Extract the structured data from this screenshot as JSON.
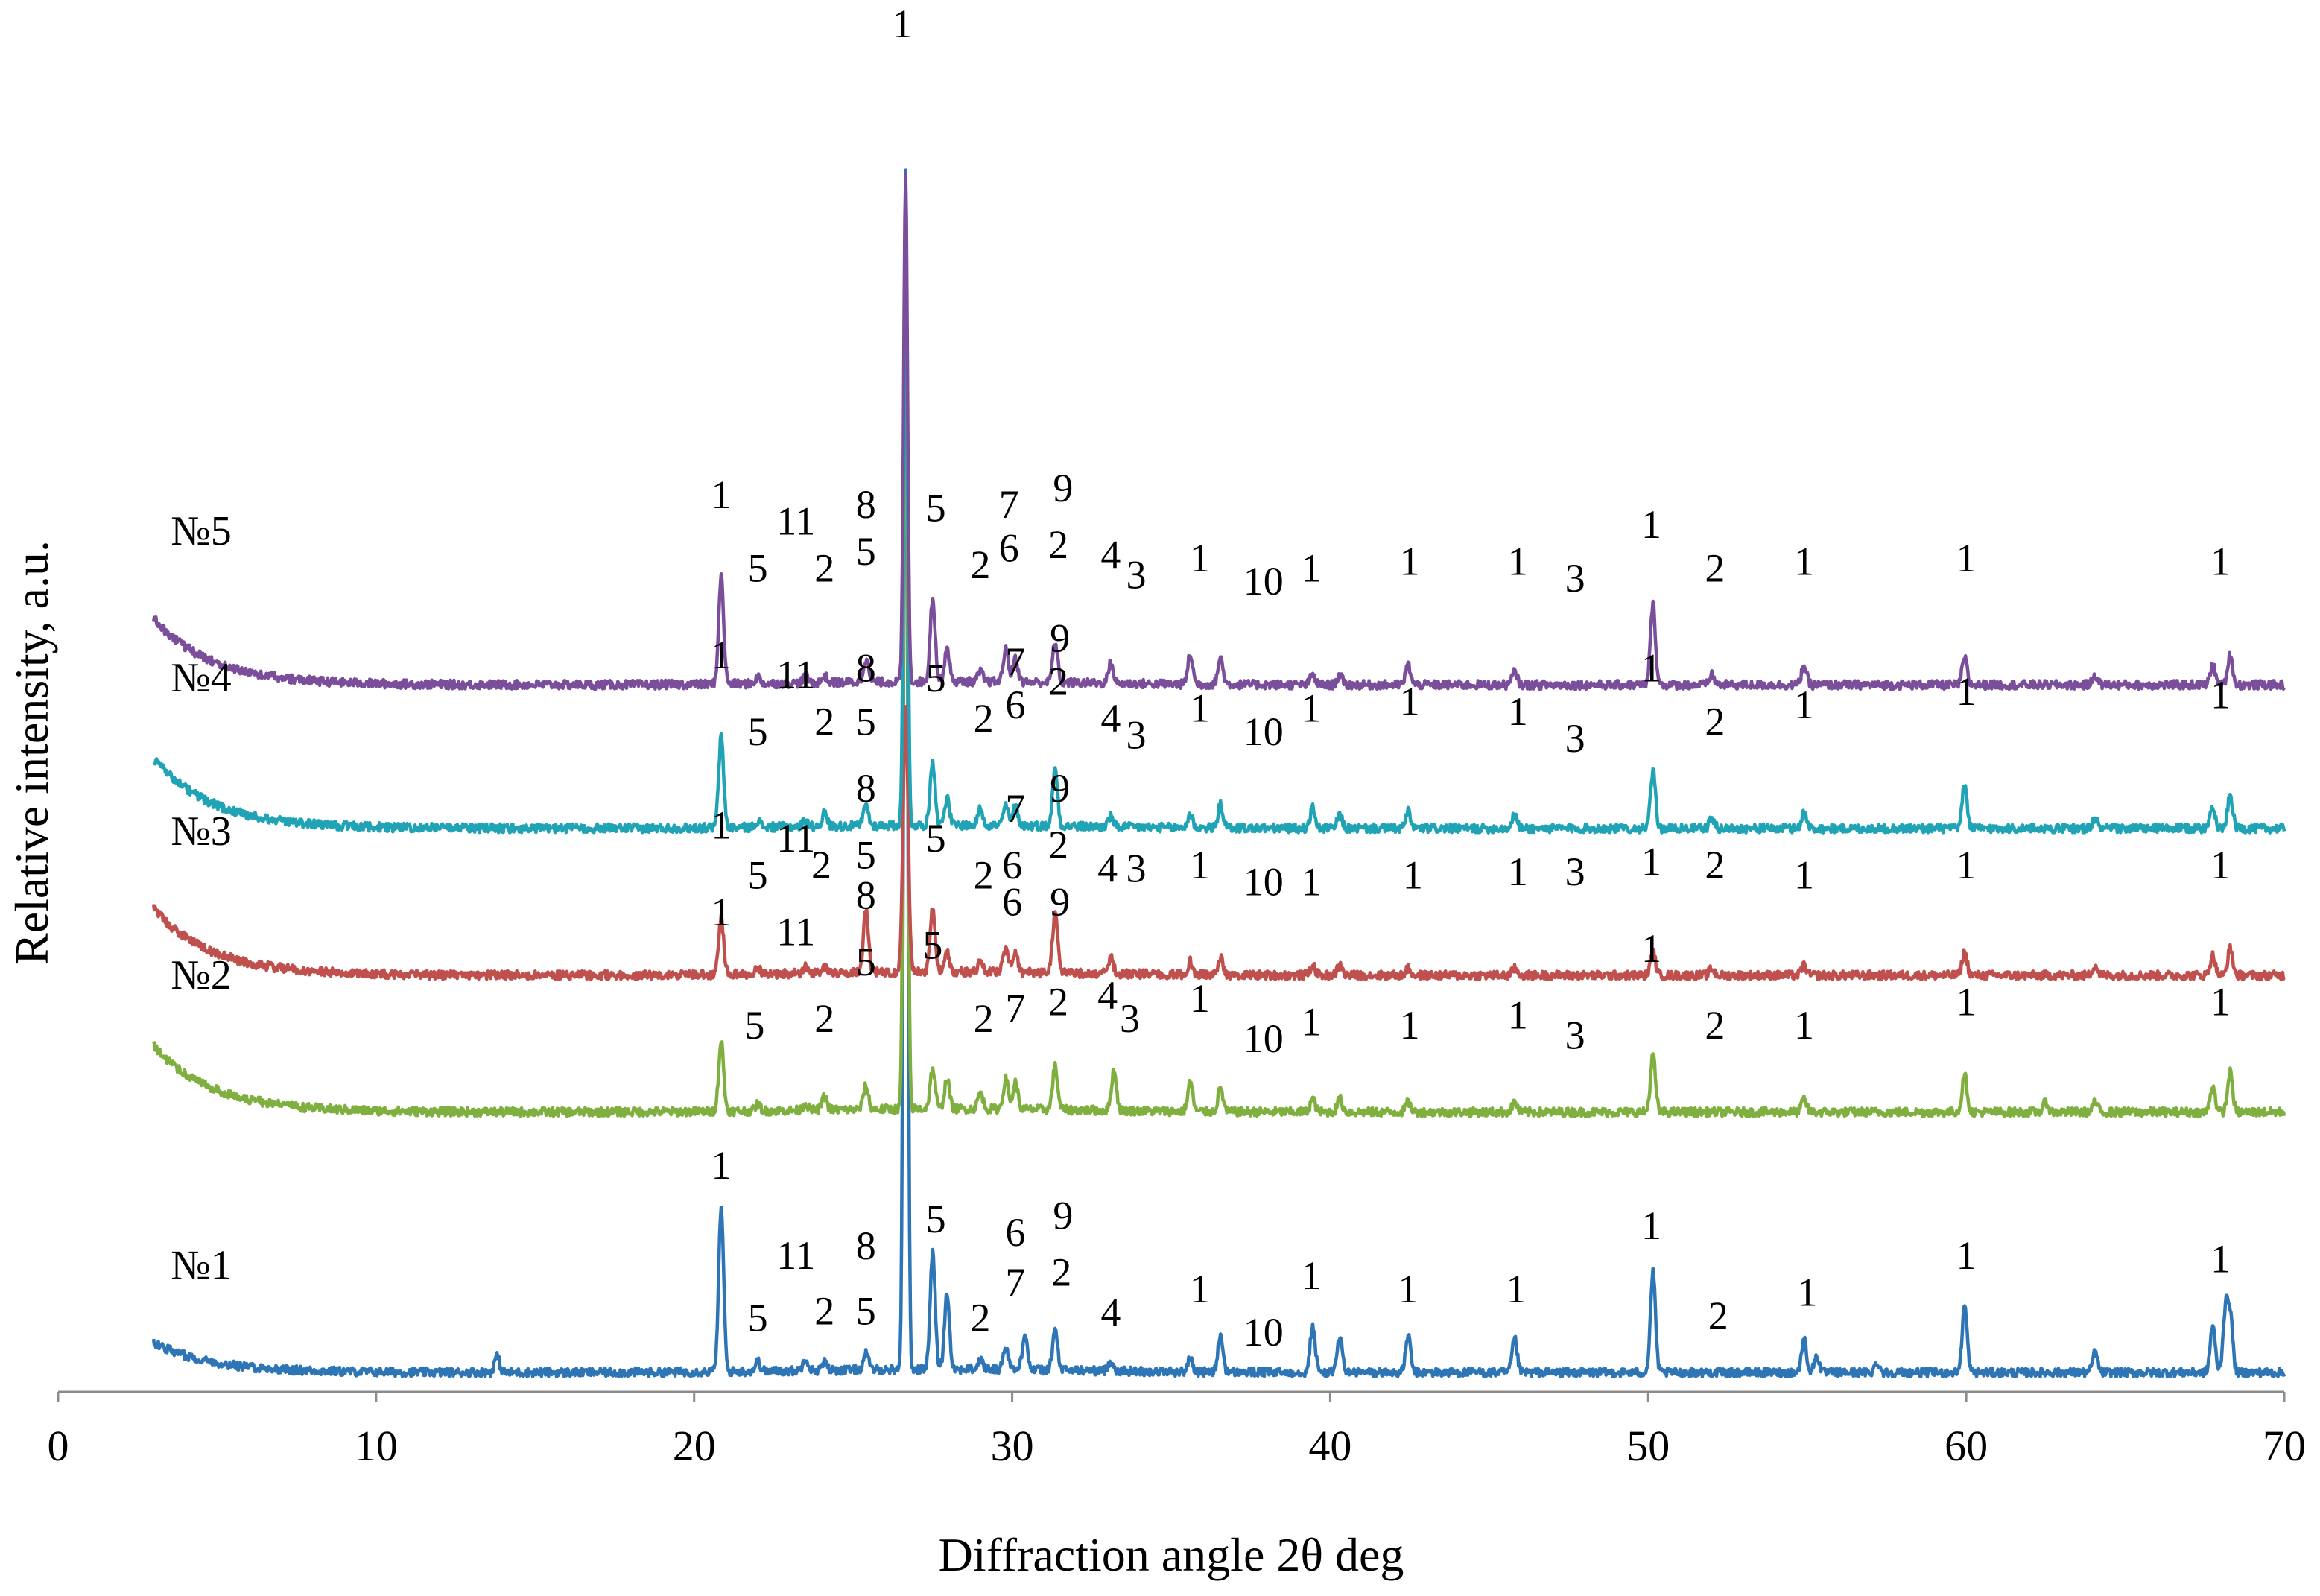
{
  "chart_data": {
    "type": "line",
    "title": "",
    "xlabel": "Diffraction angle 2θ deg",
    "ylabel": "Relative intensity, a.u.",
    "xlim": [
      0,
      70
    ],
    "x_ticks": [
      0,
      10,
      20,
      30,
      40,
      50,
      60,
      70
    ],
    "x_tick_labels": [
      "0",
      "10",
      "20",
      "30",
      "40",
      "50",
      "60",
      "70"
    ],
    "y_axis_visible": false,
    "grid": false,
    "x_range_measured": [
      3,
      70
    ],
    "baseline_shape": "background decays from ~ +0.45 at 3° to 0 by ~12°; flat thereafter",
    "series": [
      {
        "name": "№1",
        "color": "#2E75B6",
        "baseline": 0.2,
        "tail": 0.45,
        "peaks": [
          [
            13.8,
            0.25
          ],
          [
            20.85,
            2.45
          ],
          [
            22.0,
            0.15
          ],
          [
            23.5,
            0.2
          ],
          [
            24.1,
            0.12
          ],
          [
            25.4,
            0.25
          ],
          [
            26.65,
            17.9
          ],
          [
            27.5,
            1.75
          ],
          [
            27.95,
            1.15
          ],
          [
            29.0,
            0.15
          ],
          [
            29.8,
            0.35
          ],
          [
            30.4,
            0.55
          ],
          [
            31.35,
            0.6
          ],
          [
            33.1,
            0.15
          ],
          [
            35.6,
            0.2
          ],
          [
            36.55,
            0.55
          ],
          [
            39.45,
            0.7
          ],
          [
            40.3,
            0.55
          ],
          [
            42.45,
            0.55
          ],
          [
            45.8,
            0.5
          ],
          [
            50.15,
            1.5
          ],
          [
            54.9,
            0.5
          ],
          [
            55.3,
            0.25
          ],
          [
            57.2,
            0.15
          ],
          [
            59.95,
            1.0
          ],
          [
            64.05,
            0.3
          ],
          [
            67.75,
            0.7
          ],
          [
            68.15,
            0.9
          ],
          [
            68.3,
            0.85
          ]
        ]
      },
      {
        "name": "№2",
        "color": "#7FAF3F",
        "baseline": 4.1,
        "tail": 1.0,
        "peaks": [
          [
            20.85,
            1.05
          ],
          [
            22.0,
            0.1
          ],
          [
            23.5,
            0.1
          ],
          [
            24.1,
            0.2
          ],
          [
            25.4,
            0.35
          ],
          [
            26.65,
            13.0
          ],
          [
            27.5,
            0.6
          ],
          [
            27.95,
            0.45
          ],
          [
            29.0,
            0.25
          ],
          [
            29.8,
            0.45
          ],
          [
            30.1,
            0.4
          ],
          [
            31.35,
            0.65
          ],
          [
            33.2,
            0.6
          ],
          [
            35.6,
            0.45
          ],
          [
            36.55,
            0.35
          ],
          [
            39.45,
            0.2
          ],
          [
            40.3,
            0.2
          ],
          [
            42.45,
            0.15
          ],
          [
            45.8,
            0.15
          ],
          [
            50.15,
            0.85
          ],
          [
            54.9,
            0.2
          ],
          [
            59.95,
            0.55
          ],
          [
            62.5,
            0.15
          ],
          [
            64.05,
            0.15
          ],
          [
            67.75,
            0.4
          ],
          [
            68.3,
            0.6
          ]
        ]
      },
      {
        "name": "№3",
        "color": "#C0504D",
        "baseline": 6.15,
        "tail": 1.0,
        "peaks": [
          [
            20.85,
            0.85
          ],
          [
            22.0,
            0.1
          ],
          [
            23.5,
            0.1
          ],
          [
            24.1,
            0.1
          ],
          [
            25.4,
            0.95
          ],
          [
            26.65,
            4.0
          ],
          [
            27.5,
            0.95
          ],
          [
            27.95,
            0.3
          ],
          [
            29.0,
            0.15
          ],
          [
            29.8,
            0.35
          ],
          [
            30.1,
            0.3
          ],
          [
            31.35,
            0.9
          ],
          [
            33.1,
            0.25
          ],
          [
            35.6,
            0.2
          ],
          [
            36.55,
            0.25
          ],
          [
            39.45,
            0.15
          ],
          [
            40.3,
            0.15
          ],
          [
            42.45,
            0.1
          ],
          [
            45.8,
            0.1
          ],
          [
            50.15,
            0.35
          ],
          [
            52.0,
            0.1
          ],
          [
            54.9,
            0.15
          ],
          [
            59.95,
            0.35
          ],
          [
            64.05,
            0.15
          ],
          [
            67.75,
            0.3
          ],
          [
            68.3,
            0.4
          ]
        ]
      },
      {
        "name": "№4",
        "color": "#1FA3B5",
        "baseline": 8.35,
        "tail": 1.05,
        "peaks": [
          [
            20.85,
            1.35
          ],
          [
            22.0,
            0.1
          ],
          [
            23.5,
            0.1
          ],
          [
            24.1,
            0.2
          ],
          [
            25.4,
            0.3
          ],
          [
            26.65,
            8.5
          ],
          [
            27.5,
            0.95
          ],
          [
            27.95,
            0.4
          ],
          [
            29.0,
            0.25
          ],
          [
            29.8,
            0.3
          ],
          [
            30.1,
            0.3
          ],
          [
            31.35,
            0.85
          ],
          [
            33.1,
            0.15
          ],
          [
            35.6,
            0.2
          ],
          [
            36.55,
            0.35
          ],
          [
            39.45,
            0.3
          ],
          [
            40.3,
            0.2
          ],
          [
            42.45,
            0.25
          ],
          [
            45.8,
            0.2
          ],
          [
            50.15,
            0.85
          ],
          [
            52.0,
            0.15
          ],
          [
            54.9,
            0.25
          ],
          [
            59.95,
            0.65
          ],
          [
            64.05,
            0.15
          ],
          [
            67.75,
            0.35
          ],
          [
            68.3,
            0.5
          ]
        ]
      },
      {
        "name": "№5",
        "color": "#7A4E9A",
        "baseline": 10.5,
        "tail": 1.0,
        "peaks": [
          [
            20.85,
            1.6
          ],
          [
            22.0,
            0.1
          ],
          [
            23.5,
            0.1
          ],
          [
            24.1,
            0.1
          ],
          [
            25.4,
            0.35
          ],
          [
            26.65,
            7.55
          ],
          [
            27.5,
            1.25
          ],
          [
            27.95,
            0.5
          ],
          [
            29.0,
            0.15
          ],
          [
            29.8,
            0.5
          ],
          [
            30.1,
            0.35
          ],
          [
            31.35,
            0.6
          ],
          [
            33.1,
            0.3
          ],
          [
            35.6,
            0.45
          ],
          [
            36.55,
            0.4
          ],
          [
            39.45,
            0.15
          ],
          [
            40.3,
            0.15
          ],
          [
            42.45,
            0.3
          ],
          [
            45.8,
            0.2
          ],
          [
            50.15,
            1.2
          ],
          [
            52.0,
            0.15
          ],
          [
            54.9,
            0.3
          ],
          [
            59.95,
            0.4
          ],
          [
            64.05,
            0.15
          ],
          [
            67.75,
            0.3
          ],
          [
            68.3,
            0.45
          ]
        ]
      }
    ],
    "series_labels": [
      {
        "text": "№1",
        "x": 4.5,
        "y": 1.6
      },
      {
        "text": "№2",
        "x": 4.5,
        "y": 5.95
      },
      {
        "text": "№3",
        "x": 4.5,
        "y": 8.1
      },
      {
        "text": "№4",
        "x": 4.5,
        "y": 10.4
      },
      {
        "text": "№5",
        "x": 4.5,
        "y": 12.6
      }
    ],
    "annotations": [
      {
        "text": "1",
        "x": 20.85,
        "y": 3.1
      },
      {
        "text": "5",
        "x": 22.0,
        "y": 0.82
      },
      {
        "text": "11",
        "x": 23.2,
        "y": 1.75
      },
      {
        "text": "2",
        "x": 24.1,
        "y": 0.92
      },
      {
        "text": "8",
        "x": 25.4,
        "y": 1.9
      },
      {
        "text": "5",
        "x": 25.4,
        "y": 0.92
      },
      {
        "text": "5",
        "x": 27.6,
        "y": 2.3
      },
      {
        "text": "6",
        "x": 30.1,
        "y": 2.1
      },
      {
        "text": "7",
        "x": 30.1,
        "y": 1.35
      },
      {
        "text": "9",
        "x": 31.6,
        "y": 2.35
      },
      {
        "text": "2",
        "x": 31.55,
        "y": 1.5
      },
      {
        "text": "2",
        "x": 29.0,
        "y": 0.82
      },
      {
        "text": "4",
        "x": 33.1,
        "y": 0.9
      },
      {
        "text": "1",
        "x": 35.9,
        "y": 1.25
      },
      {
        "text": "10",
        "x": 37.9,
        "y": 0.6
      },
      {
        "text": "1",
        "x": 39.4,
        "y": 1.45
      },
      {
        "text": "1",
        "x": 42.45,
        "y": 1.25
      },
      {
        "text": "1",
        "x": 45.85,
        "y": 1.25
      },
      {
        "text": "1",
        "x": 50.1,
        "y": 2.2
      },
      {
        "text": "2",
        "x": 52.2,
        "y": 0.85
      },
      {
        "text": "1",
        "x": 55.0,
        "y": 1.2
      },
      {
        "text": "1",
        "x": 60.0,
        "y": 1.75
      },
      {
        "text": "1",
        "x": 68.0,
        "y": 1.7
      },
      {
        "text": "1",
        "x": 20.85,
        "y": 6.9
      },
      {
        "text": "5",
        "x": 21.9,
        "y": 5.2
      },
      {
        "text": "11",
        "x": 23.2,
        "y": 6.6
      },
      {
        "text": "2",
        "x": 24.1,
        "y": 5.3
      },
      {
        "text": "8",
        "x": 25.4,
        "y": 7.15
      },
      {
        "text": "5",
        "x": 25.4,
        "y": 6.15
      },
      {
        "text": "5",
        "x": 27.5,
        "y": 6.4
      },
      {
        "text": "6",
        "x": 30.0,
        "y": 7.05
      },
      {
        "text": "2",
        "x": 29.1,
        "y": 5.3
      },
      {
        "text": "7",
        "x": 30.1,
        "y": 5.45
      },
      {
        "text": "9",
        "x": 31.5,
        "y": 7.05
      },
      {
        "text": "2",
        "x": 31.45,
        "y": 5.55
      },
      {
        "text": "4",
        "x": 33.0,
        "y": 5.65
      },
      {
        "text": "3",
        "x": 33.7,
        "y": 5.3
      },
      {
        "text": "1",
        "x": 35.9,
        "y": 5.6
      },
      {
        "text": "10",
        "x": 37.9,
        "y": 5.0
      },
      {
        "text": "1",
        "x": 39.4,
        "y": 5.25
      },
      {
        "text": "1",
        "x": 42.5,
        "y": 5.2
      },
      {
        "text": "1",
        "x": 45.9,
        "y": 5.35
      },
      {
        "text": "3",
        "x": 47.7,
        "y": 5.05
      },
      {
        "text": "1",
        "x": 50.1,
        "y": 6.35
      },
      {
        "text": "2",
        "x": 52.1,
        "y": 5.2
      },
      {
        "text": "1",
        "x": 54.9,
        "y": 5.2
      },
      {
        "text": "1",
        "x": 60.0,
        "y": 5.55
      },
      {
        "text": "1",
        "x": 68.0,
        "y": 5.55
      },
      {
        "text": "1",
        "x": 20.85,
        "y": 8.2
      },
      {
        "text": "5",
        "x": 22.0,
        "y": 7.45
      },
      {
        "text": "11",
        "x": 23.2,
        "y": 8.0
      },
      {
        "text": "2",
        "x": 24.0,
        "y": 7.6
      },
      {
        "text": "8",
        "x": 25.4,
        "y": 8.75
      },
      {
        "text": "5",
        "x": 25.4,
        "y": 7.75
      },
      {
        "text": "5",
        "x": 27.6,
        "y": 8.0
      },
      {
        "text": "7",
        "x": 30.1,
        "y": 8.45
      },
      {
        "text": "6",
        "x": 30.0,
        "y": 7.6
      },
      {
        "text": "9",
        "x": 31.5,
        "y": 8.75
      },
      {
        "text": "2",
        "x": 31.45,
        "y": 7.9
      },
      {
        "text": "2",
        "x": 29.1,
        "y": 7.45
      },
      {
        "text": "4",
        "x": 33.0,
        "y": 7.55
      },
      {
        "text": "3",
        "x": 33.9,
        "y": 7.55
      },
      {
        "text": "1",
        "x": 35.9,
        "y": 7.6
      },
      {
        "text": "10",
        "x": 37.9,
        "y": 7.35
      },
      {
        "text": "1",
        "x": 39.4,
        "y": 7.35
      },
      {
        "text": "1",
        "x": 42.6,
        "y": 7.45
      },
      {
        "text": "1",
        "x": 45.9,
        "y": 7.5
      },
      {
        "text": "3",
        "x": 47.7,
        "y": 7.5
      },
      {
        "text": "1",
        "x": 50.1,
        "y": 7.65
      },
      {
        "text": "2",
        "x": 52.1,
        "y": 7.6
      },
      {
        "text": "1",
        "x": 54.9,
        "y": 7.45
      },
      {
        "text": "1",
        "x": 60.0,
        "y": 7.6
      },
      {
        "text": "1",
        "x": 68.0,
        "y": 7.6
      },
      {
        "text": "1",
        "x": 20.85,
        "y": 10.75
      },
      {
        "text": "5",
        "x": 22.0,
        "y": 9.6
      },
      {
        "text": "11",
        "x": 23.2,
        "y": 10.45
      },
      {
        "text": "2",
        "x": 24.1,
        "y": 9.75
      },
      {
        "text": "8",
        "x": 25.4,
        "y": 10.55
      },
      {
        "text": "5",
        "x": 25.4,
        "y": 9.75
      },
      {
        "text": "5",
        "x": 27.6,
        "y": 10.4
      },
      {
        "text": "7",
        "x": 30.1,
        "y": 10.65
      },
      {
        "text": "6",
        "x": 30.1,
        "y": 10.0
      },
      {
        "text": "9",
        "x": 31.5,
        "y": 11.0
      },
      {
        "text": "2",
        "x": 31.45,
        "y": 10.35
      },
      {
        "text": "2",
        "x": 29.1,
        "y": 9.8
      },
      {
        "text": "4",
        "x": 33.1,
        "y": 9.8
      },
      {
        "text": "3",
        "x": 33.9,
        "y": 9.55
      },
      {
        "text": "1",
        "x": 35.9,
        "y": 9.95
      },
      {
        "text": "10",
        "x": 37.9,
        "y": 9.6
      },
      {
        "text": "1",
        "x": 39.4,
        "y": 9.95
      },
      {
        "text": "1",
        "x": 42.5,
        "y": 10.05
      },
      {
        "text": "1",
        "x": 45.9,
        "y": 9.9
      },
      {
        "text": "3",
        "x": 47.7,
        "y": 9.5
      },
      {
        "text": "1",
        "x": 50.1,
        "y": 10.55
      },
      {
        "text": "2",
        "x": 52.1,
        "y": 9.75
      },
      {
        "text": "1",
        "x": 54.9,
        "y": 10.0
      },
      {
        "text": "1",
        "x": 60.0,
        "y": 10.2
      },
      {
        "text": "1",
        "x": 68.0,
        "y": 10.15
      },
      {
        "text": "1",
        "x": 20.85,
        "y": 13.15
      },
      {
        "text": "5",
        "x": 22.0,
        "y": 12.05
      },
      {
        "text": "11",
        "x": 23.2,
        "y": 12.75
      },
      {
        "text": "2",
        "x": 24.1,
        "y": 12.05
      },
      {
        "text": "8",
        "x": 25.4,
        "y": 13.0
      },
      {
        "text": "5",
        "x": 25.4,
        "y": 12.3
      },
      {
        "text": "5",
        "x": 27.6,
        "y": 12.95
      },
      {
        "text": "7",
        "x": 29.9,
        "y": 13.0
      },
      {
        "text": "6",
        "x": 29.9,
        "y": 12.35
      },
      {
        "text": "9",
        "x": 31.6,
        "y": 13.25
      },
      {
        "text": "2",
        "x": 31.45,
        "y": 12.4
      },
      {
        "text": "2",
        "x": 29.0,
        "y": 12.1
      },
      {
        "text": "4",
        "x": 33.1,
        "y": 12.25
      },
      {
        "text": "3",
        "x": 33.9,
        "y": 11.95
      },
      {
        "text": "1",
        "x": 35.9,
        "y": 12.2
      },
      {
        "text": "10",
        "x": 37.9,
        "y": 11.85
      },
      {
        "text": "1",
        "x": 39.4,
        "y": 12.05
      },
      {
        "text": "1",
        "x": 42.5,
        "y": 12.15
      },
      {
        "text": "1",
        "x": 45.9,
        "y": 12.15
      },
      {
        "text": "3",
        "x": 47.7,
        "y": 11.9
      },
      {
        "text": "1",
        "x": 50.1,
        "y": 12.7
      },
      {
        "text": "2",
        "x": 52.1,
        "y": 12.05
      },
      {
        "text": "1",
        "x": 54.9,
        "y": 12.15
      },
      {
        "text": "1",
        "x": 60.0,
        "y": 12.2
      },
      {
        "text": "1",
        "x": 68.0,
        "y": 12.15
      },
      {
        "text": "1",
        "x": 26.55,
        "y": 20.2
      }
    ]
  }
}
